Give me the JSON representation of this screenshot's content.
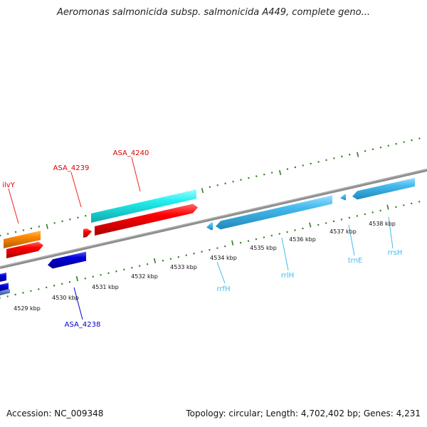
{
  "title": "Aeromonas salmonicida subsp. salmonicida A449, complete geno...",
  "footer": {
    "accession": "Accession: NC_009348",
    "summary": "Topology: circular; Length: 4,702,402 bp; Genes: 4,231"
  },
  "colors": {
    "background": "#ffffff",
    "backbone": "#8c8c8c",
    "tick": "#2f7d1e",
    "forward_cds": "#ff0000",
    "forward_alt": "#ff8800",
    "reverse_cds": "#0000dd",
    "rna": "#44bbee",
    "cyan_feature": "#22eeee"
  },
  "scale": {
    "ticks": [
      "4529 kbp",
      "4530 kbp",
      "4531 kbp",
      "4532 kbp",
      "4533 kbp",
      "4534 kbp",
      "4535 kbp",
      "4536 kbp",
      "4537 kbp",
      "4538 kbp"
    ]
  },
  "feature_labels": {
    "ilvY": "ilvY",
    "asa4239": "ASA_4239",
    "asa4240": "ASA_4240",
    "asa4238": "ASA_4238",
    "rrfH": "rrfH",
    "rrlH": "rrlH",
    "trnE": "trnE",
    "rrsH": "rrsH"
  }
}
